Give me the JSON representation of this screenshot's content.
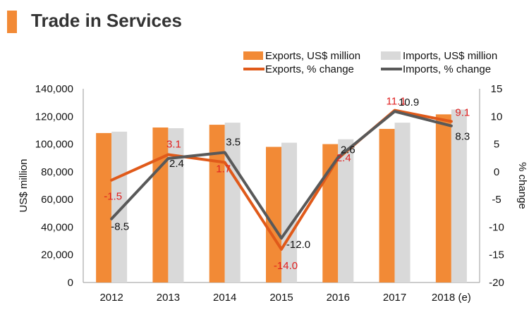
{
  "title": "Trade in Services",
  "colors": {
    "exports_bar": "#f28a36",
    "imports_bar": "#d9d9d9",
    "exports_line": "#e05a1a",
    "imports_line": "#595959",
    "exports_label": "#e02020",
    "imports_label": "#111111",
    "title_accent": "#f28a36"
  },
  "chart_data": {
    "type": "bar",
    "title": "Trade in Services",
    "categories": [
      "2012",
      "2013",
      "2014",
      "2015",
      "2016",
      "2017",
      "2018 (e)"
    ],
    "series": [
      {
        "name": "Exports, US$ million",
        "kind": "bar",
        "axis": "left",
        "values": [
          108000,
          112000,
          114000,
          98000,
          100000,
          111000,
          121500
        ]
      },
      {
        "name": "Imports, US$ million",
        "kind": "bar",
        "axis": "left",
        "values": [
          109000,
          111500,
          115500,
          101000,
          103500,
          115500,
          125000
        ]
      },
      {
        "name": "Exports, % change",
        "kind": "line",
        "axis": "right",
        "values": [
          -1.5,
          3.1,
          1.7,
          -14.0,
          2.4,
          11.1,
          9.1
        ],
        "labels": [
          "-1.5",
          "3.1",
          "1.7",
          "-14.0",
          "2.4",
          "11.1",
          "9.1"
        ]
      },
      {
        "name": "Imports, % change",
        "kind": "line",
        "axis": "right",
        "values": [
          -8.5,
          2.4,
          3.5,
          -12.0,
          2.6,
          10.9,
          8.3
        ],
        "labels": [
          "-8.5",
          "2.4",
          "3.5",
          "-12.0",
          "2.6",
          "10.9",
          "8.3"
        ]
      }
    ],
    "ylabel": "US$ million",
    "y2label": "% change",
    "ylim": [
      0,
      140000
    ],
    "y2lim": [
      -20,
      15
    ],
    "yticks": [
      "0",
      "20,000",
      "40,000",
      "60,000",
      "80,000",
      "100,000",
      "120,000",
      "140,000"
    ],
    "y2ticks": [
      "-20",
      "-15",
      "-10",
      "-5",
      "0",
      "5",
      "10",
      "15"
    ],
    "grid": false,
    "legend_position": "top-right"
  }
}
